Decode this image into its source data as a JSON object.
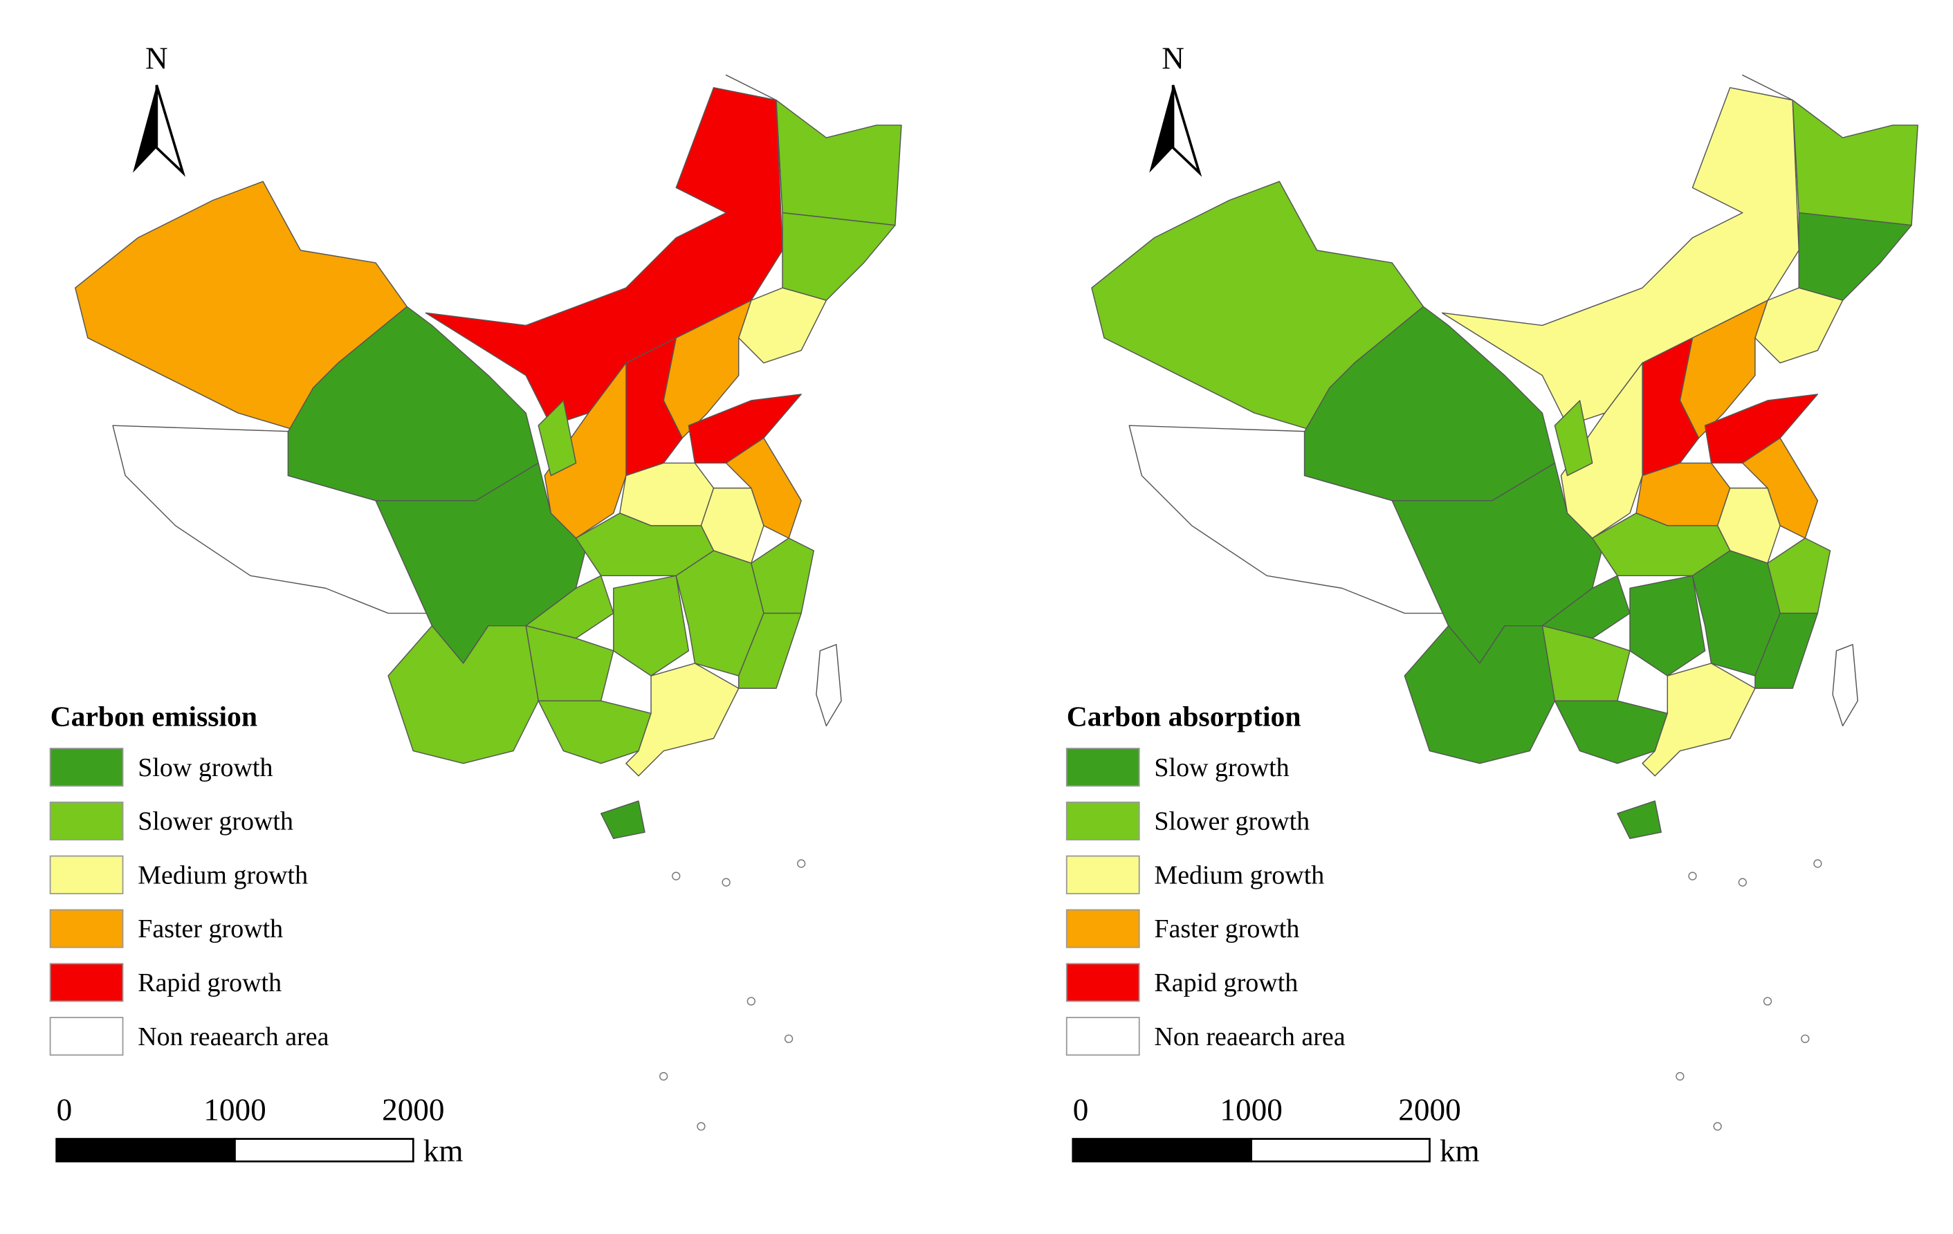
{
  "maps": [
    {
      "north": "N",
      "legend": {
        "title": "Carbon emission",
        "items": [
          {
            "label": "Slow growth",
            "color": "#3ca01e"
          },
          {
            "label": "Slower growth",
            "color": "#78c81e"
          },
          {
            "label": "Medium growth",
            "color": "#fbfb8c"
          },
          {
            "label": "Faster growth",
            "color": "#f9a400"
          },
          {
            "label": "Rapid growth",
            "color": "#f50000"
          },
          {
            "label": "Non reaearch area",
            "color": "#ffffff"
          }
        ]
      },
      "scale": {
        "ticks": [
          0,
          1000,
          2000
        ],
        "unit": "km"
      }
    },
    {
      "north": "N",
      "legend": {
        "title": "Carbon absorption",
        "items": [
          {
            "label": "Slow growth",
            "color": "#3ca01e"
          },
          {
            "label": "Slower growth",
            "color": "#78c81e"
          },
          {
            "label": "Medium growth",
            "color": "#fbfb8c"
          },
          {
            "label": "Faster growth",
            "color": "#f9a400"
          },
          {
            "label": "Rapid growth",
            "color": "#f50000"
          },
          {
            "label": "Non reaearch area",
            "color": "#ffffff"
          }
        ]
      },
      "scale": {
        "ticks": [
          0,
          1000,
          2000
        ],
        "unit": "km"
      }
    }
  ]
}
